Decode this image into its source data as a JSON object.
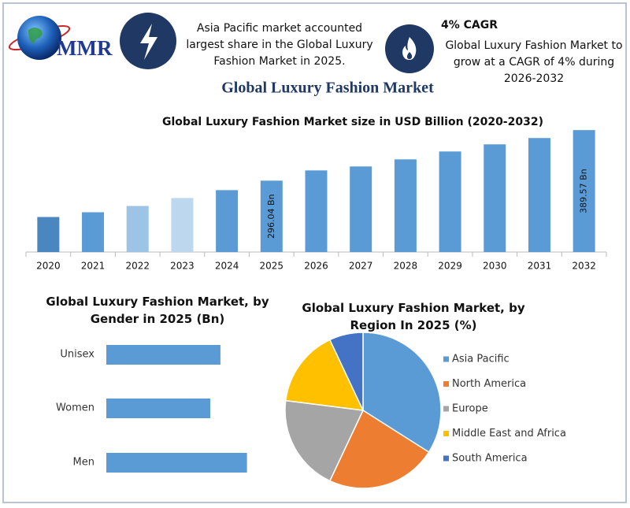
{
  "header": {
    "logo": "MMR",
    "info": "Asia Pacific market accounted largest share in the Global Luxury Fashion Market in 2025.",
    "cagr_title": "4% CAGR",
    "cagr_text": "Global Luxury Fashion Market to grow at a CAGR of 4% during 2026-2032",
    "title": "Global Luxury Fashion Market"
  },
  "chart_data": [
    {
      "type": "bar",
      "title": "Global Luxury Fashion Market size in USD Billion (2020-2032)",
      "categories": [
        "2020",
        "2021",
        "2022",
        "2023",
        "2024",
        "2025",
        "2026",
        "2027",
        "2028",
        "2029",
        "2030",
        "2031",
        "2032"
      ],
      "values": [
        228.8,
        237.6,
        249.2,
        263.9,
        278.5,
        296.04,
        315,
        322.3,
        335.4,
        350,
        363.2,
        374.9,
        389.57
      ],
      "value_labels": [
        null,
        null,
        null,
        null,
        null,
        "296.04 Bn",
        null,
        null,
        null,
        null,
        null,
        null,
        "389.57 Bn"
      ],
      "colors": [
        "#4a86c0",
        "#5b9bd5",
        "#9dc3e6",
        "#bdd7ee",
        "#5b9bd5",
        "#5b9bd5",
        "#5b9bd5",
        "#5b9bd5",
        "#5b9bd5",
        "#5b9bd5",
        "#5b9bd5",
        "#5b9bd5",
        "#5b9bd5"
      ],
      "ylim": [
        164,
        400
      ]
    },
    {
      "type": "hbar",
      "title": "Global Luxury Fashion Market, by Gender in 2025 (Bn)",
      "categories": [
        "Unisex",
        "Women",
        "Men"
      ],
      "values": [
        94.2,
        85.8,
        116.1
      ],
      "color": "#5b9bd5",
      "xlim": [
        0,
        130
      ]
    },
    {
      "type": "pie",
      "title": "Global Luxury Fashion Market, by Region In 2025 (%)",
      "categories": [
        "Asia Pacific",
        "North America",
        "Europe",
        "Middle East and Africa",
        "South America"
      ],
      "values": [
        34,
        23,
        20,
        16,
        7
      ],
      "colors": [
        "#5b9bd5",
        "#ed7d31",
        "#a5a5a5",
        "#ffc000",
        "#4472c4"
      ],
      "legend": "right"
    }
  ]
}
